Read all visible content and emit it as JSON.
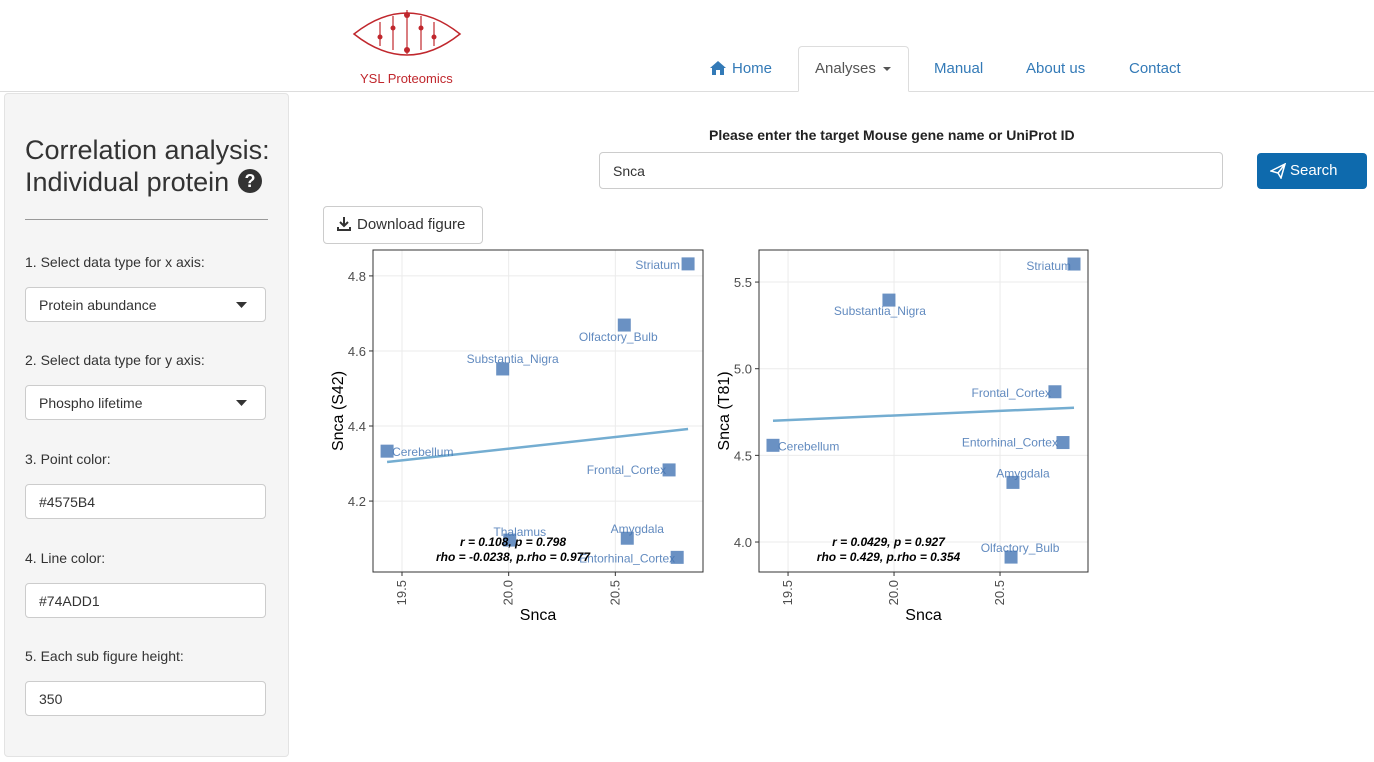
{
  "header": {
    "brand": "YSL Proteomics",
    "nav": [
      "Home",
      "Analyses",
      "Manual",
      "About us",
      "Contact"
    ]
  },
  "sidebar": {
    "title": [
      "Correlation analysis:",
      "Individual protein"
    ],
    "fields": [
      {
        "label": "1. Select data type for x axis:",
        "value": "Protein abundance"
      },
      {
        "label": "2. Select data type for y axis:",
        "value": "Phospho lifetime"
      },
      {
        "label": "3. Point color:",
        "value": "#4575B4"
      },
      {
        "label": "4. Line color:",
        "value": "#74ADD1"
      },
      {
        "label": "5. Each sub figure height:",
        "value": "350"
      }
    ]
  },
  "search": {
    "label": "Please enter the target Mouse gene name or UniProt ID",
    "input": "Snca",
    "button": "Search",
    "download": "Download figure"
  },
  "chart_data": [
    {
      "type": "scatter",
      "x_label": "Snca",
      "y_label": "Snca (S42)",
      "color": "#4575B4",
      "line_color": "#74ADD1",
      "grid": true,
      "point_labels": [
        "Striatum",
        "Olfactory_Bulb",
        "Substantia_Nigra",
        "Cerebellum",
        "Frontal_Cortex",
        "Thalamus",
        "Amygdala",
        "Entorhinal_Cortex"
      ],
      "x": [
        20.841,
        20.542,
        19.972,
        19.43,
        20.752,
        20.005,
        20.556,
        20.79
      ],
      "values": [
        4.832,
        4.669,
        4.552,
        4.333,
        4.283,
        4.096,
        4.101,
        4.05
      ],
      "fit_line": {
        "x": [
          19.43,
          20.841
        ],
        "y": [
          4.304,
          4.392
        ]
      },
      "annotations": [
        "r = 0.108,  p = 0.798",
        "rho = -0.0238,  p.rho = 0.977"
      ],
      "xlim": [
        19.364,
        20.911
      ],
      "ylim": [
        4.011,
        4.869
      ],
      "xticks": [
        19.5,
        {
          "value": 20,
          "label": "20.0"
        },
        20.5
      ],
      "yticks": [
        4.2,
        4.4,
        4.6,
        4.8
      ]
    },
    {
      "type": "scatter",
      "x_label": "Snca",
      "y_label": "Snca (T81)",
      "color": "#4575B4",
      "line_color": "#74ADD1",
      "grid": true,
      "point_labels": [
        "Striatum",
        "Substantia_Nigra",
        "Frontal_Cortex",
        "Cerebellum",
        "Entorhinal_Cortex",
        "Amygdala",
        "Olfactory_Bulb"
      ],
      "x": [
        20.849,
        19.976,
        20.759,
        19.429,
        20.797,
        20.561,
        20.552
      ],
      "values": [
        5.604,
        5.396,
        4.867,
        4.558,
        4.574,
        4.344,
        3.913
      ],
      "fit_line": {
        "x": [
          19.429,
          20.849
        ],
        "y": [
          4.7,
          4.775
        ]
      },
      "annotations": [
        "r = 0.0429,  p = 0.927",
        "rho = 0.429,  p.rho = 0.354"
      ],
      "xlim": [
        19.363,
        20.915
      ],
      "ylim": [
        3.827,
        5.685
      ],
      "xticks": [
        19.5,
        {
          "value": 20,
          "label": "20.0"
        },
        20.5
      ],
      "yticks": [
        {
          "value": 4,
          "label": "4.0"
        },
        4.5,
        {
          "value": 5,
          "label": "5.0"
        },
        5.5
      ]
    }
  ]
}
